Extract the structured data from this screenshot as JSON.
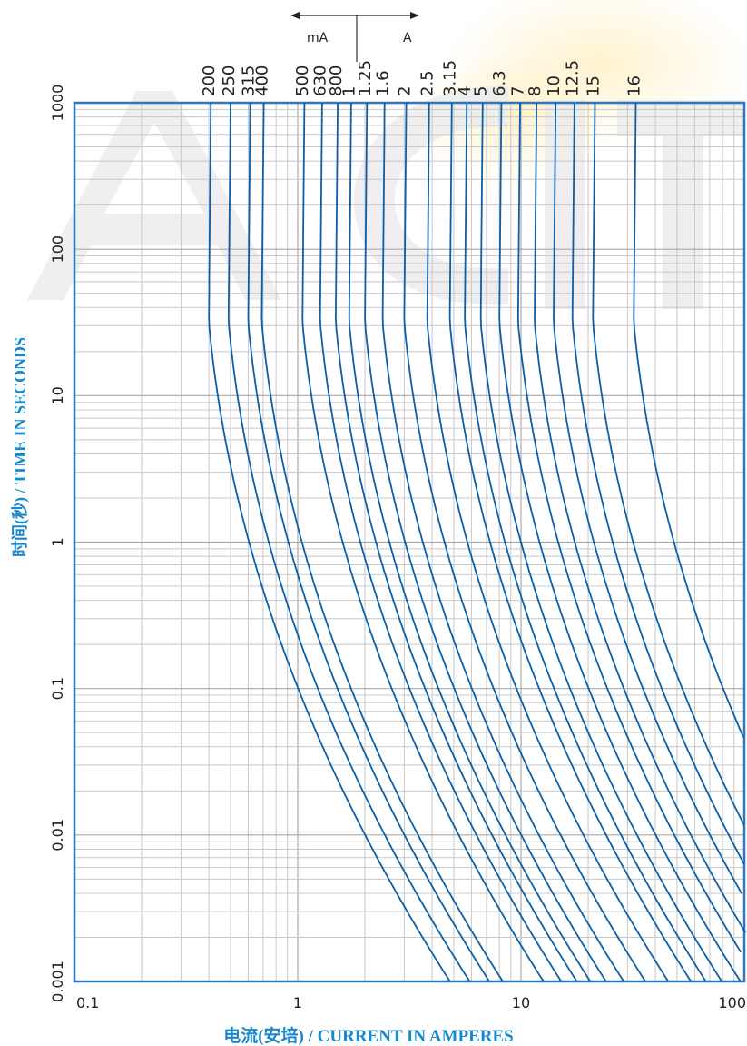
{
  "chart_data": {
    "type": "line",
    "title": "",
    "xlabel": "电流(安培) / CURRENT IN AMPERES",
    "ylabel": "时间(秒) / TIME IN SECONDS",
    "x_scale": "log",
    "y_scale": "log",
    "xlim": [
      0.1,
      100
    ],
    "ylim": [
      0.001,
      1000
    ],
    "grid": true,
    "x_tick_labels": [
      "0.1",
      "1",
      "10",
      "100"
    ],
    "y_tick_labels": [
      "0.001",
      "0.01",
      "0.1",
      "1",
      "10",
      "100",
      "1000"
    ],
    "unit_indicator": {
      "left": "mA",
      "right": "A"
    },
    "series": [
      {
        "name": "200",
        "rating_A": 0.2,
        "x_at_1000s": 0.4
      },
      {
        "name": "250",
        "rating_A": 0.25,
        "x_at_1000s": 0.49
      },
      {
        "name": "315",
        "rating_A": 0.315,
        "x_at_1000s": 0.6
      },
      {
        "name": "400",
        "rating_A": 0.4,
        "x_at_1000s": 0.69
      },
      {
        "name": "500",
        "rating_A": 0.5,
        "x_at_1000s": 1.05
      },
      {
        "name": "630",
        "rating_A": 0.63,
        "x_at_1000s": 1.26
      },
      {
        "name": "800",
        "rating_A": 0.8,
        "x_at_1000s": 1.48
      },
      {
        "name": "1",
        "rating_A": 1,
        "x_at_1000s": 1.7
      },
      {
        "name": "1.25",
        "rating_A": 1.25,
        "x_at_1000s": 2.0
      },
      {
        "name": "1.6",
        "rating_A": 1.6,
        "x_at_1000s": 2.4
      },
      {
        "name": "2",
        "rating_A": 2,
        "x_at_1000s": 3.0
      },
      {
        "name": "2.5",
        "rating_A": 2.5,
        "x_at_1000s": 3.8
      },
      {
        "name": "3.15",
        "rating_A": 3.15,
        "x_at_1000s": 4.8
      },
      {
        "name": "4",
        "rating_A": 4,
        "x_at_1000s": 5.6
      },
      {
        "name": "5",
        "rating_A": 5,
        "x_at_1000s": 6.6
      },
      {
        "name": "6.3",
        "rating_A": 6.3,
        "x_at_1000s": 8.0
      },
      {
        "name": "7",
        "rating_A": 7,
        "x_at_1000s": 9.7
      },
      {
        "name": "8",
        "rating_A": 8,
        "x_at_1000s": 11.5
      },
      {
        "name": "10",
        "rating_A": 10,
        "x_at_1000s": 14.0
      },
      {
        "name": "12.5",
        "rating_A": 12.5,
        "x_at_1000s": 17.0
      },
      {
        "name": "15",
        "rating_A": 15,
        "x_at_1000s": 21.0
      },
      {
        "name": "16",
        "rating_A": 16,
        "x_at_1000s": 32.0
      }
    ],
    "accent_color": "#0a5fa8",
    "title_color": "#1a88cc"
  }
}
